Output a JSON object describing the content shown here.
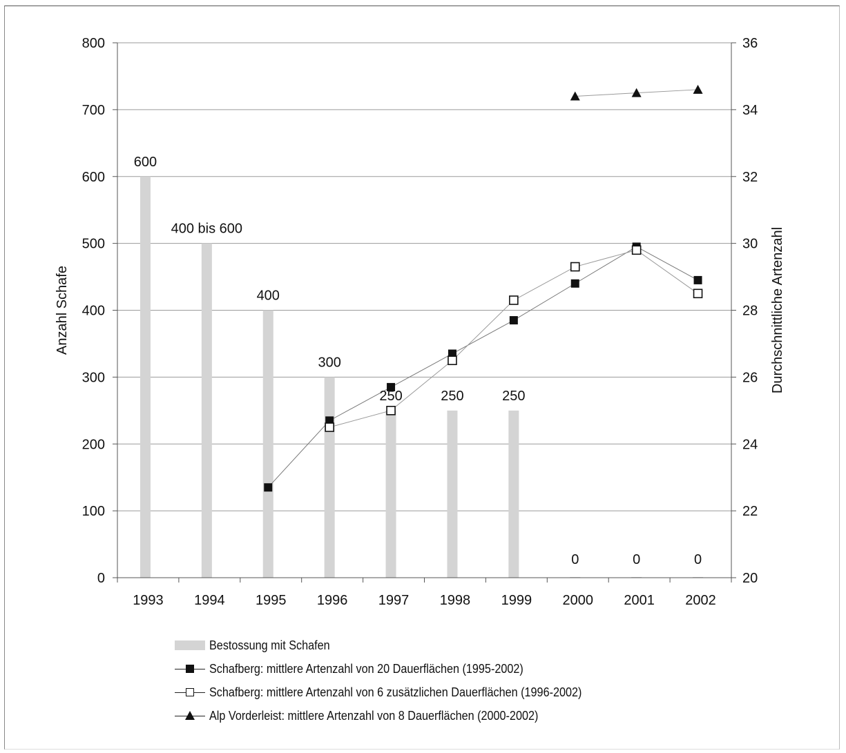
{
  "chart_data": {
    "type": "bar",
    "categories": [
      "1993",
      "1994",
      "1995",
      "1996",
      "1997",
      "1998",
      "1999",
      "2000",
      "2001",
      "2002"
    ],
    "ylabel": "Anzahl Schafe",
    "ylim": [
      0,
      800
    ],
    "yticks": [
      "0",
      "100",
      "200",
      "300",
      "400",
      "500",
      "600",
      "700",
      "800"
    ],
    "y2label": "Durchschnittliche Artenzahl",
    "y2lim": [
      20,
      36
    ],
    "y2ticks": [
      "20",
      "22",
      "24",
      "26",
      "28",
      "30",
      "32",
      "34",
      "36"
    ],
    "grid": true,
    "legend_position": "bottom",
    "series": [
      {
        "name": "Bestossung mit Schafen",
        "kind": "bar",
        "axis": "left",
        "color": "#d4d4d4",
        "values": [
          600,
          500,
          400,
          300,
          250,
          250,
          250,
          0,
          0,
          0
        ],
        "labels": [
          "600",
          "400 bis 600",
          "400",
          "300",
          "250",
          "250",
          "250",
          "0",
          "0",
          "0"
        ]
      },
      {
        "name": "Schafberg: mittlere Artenzahl von 20 Dauerflächen (1995-2002)",
        "kind": "line",
        "axis": "right",
        "marker": "filled-square",
        "color": "#111111",
        "values": [
          null,
          null,
          22.7,
          24.7,
          25.7,
          26.7,
          27.7,
          28.8,
          29.9,
          28.9
        ]
      },
      {
        "name": "Schafberg: mittlere Artenzahl von 6 zusätzlichen Dauerflächen (1996-2002)",
        "kind": "line",
        "axis": "right",
        "marker": "open-square",
        "color": "#111111",
        "values": [
          null,
          null,
          null,
          24.5,
          25.0,
          26.5,
          28.3,
          29.3,
          29.8,
          28.5
        ]
      },
      {
        "name": "Alp Vorderleist: mittlere Artenzahl von 8 Dauerflächen (2000-2002)",
        "kind": "line",
        "axis": "right",
        "marker": "filled-triangle",
        "color": "#111111",
        "values": [
          null,
          null,
          null,
          null,
          null,
          null,
          null,
          34.4,
          34.5,
          34.6
        ]
      }
    ]
  }
}
